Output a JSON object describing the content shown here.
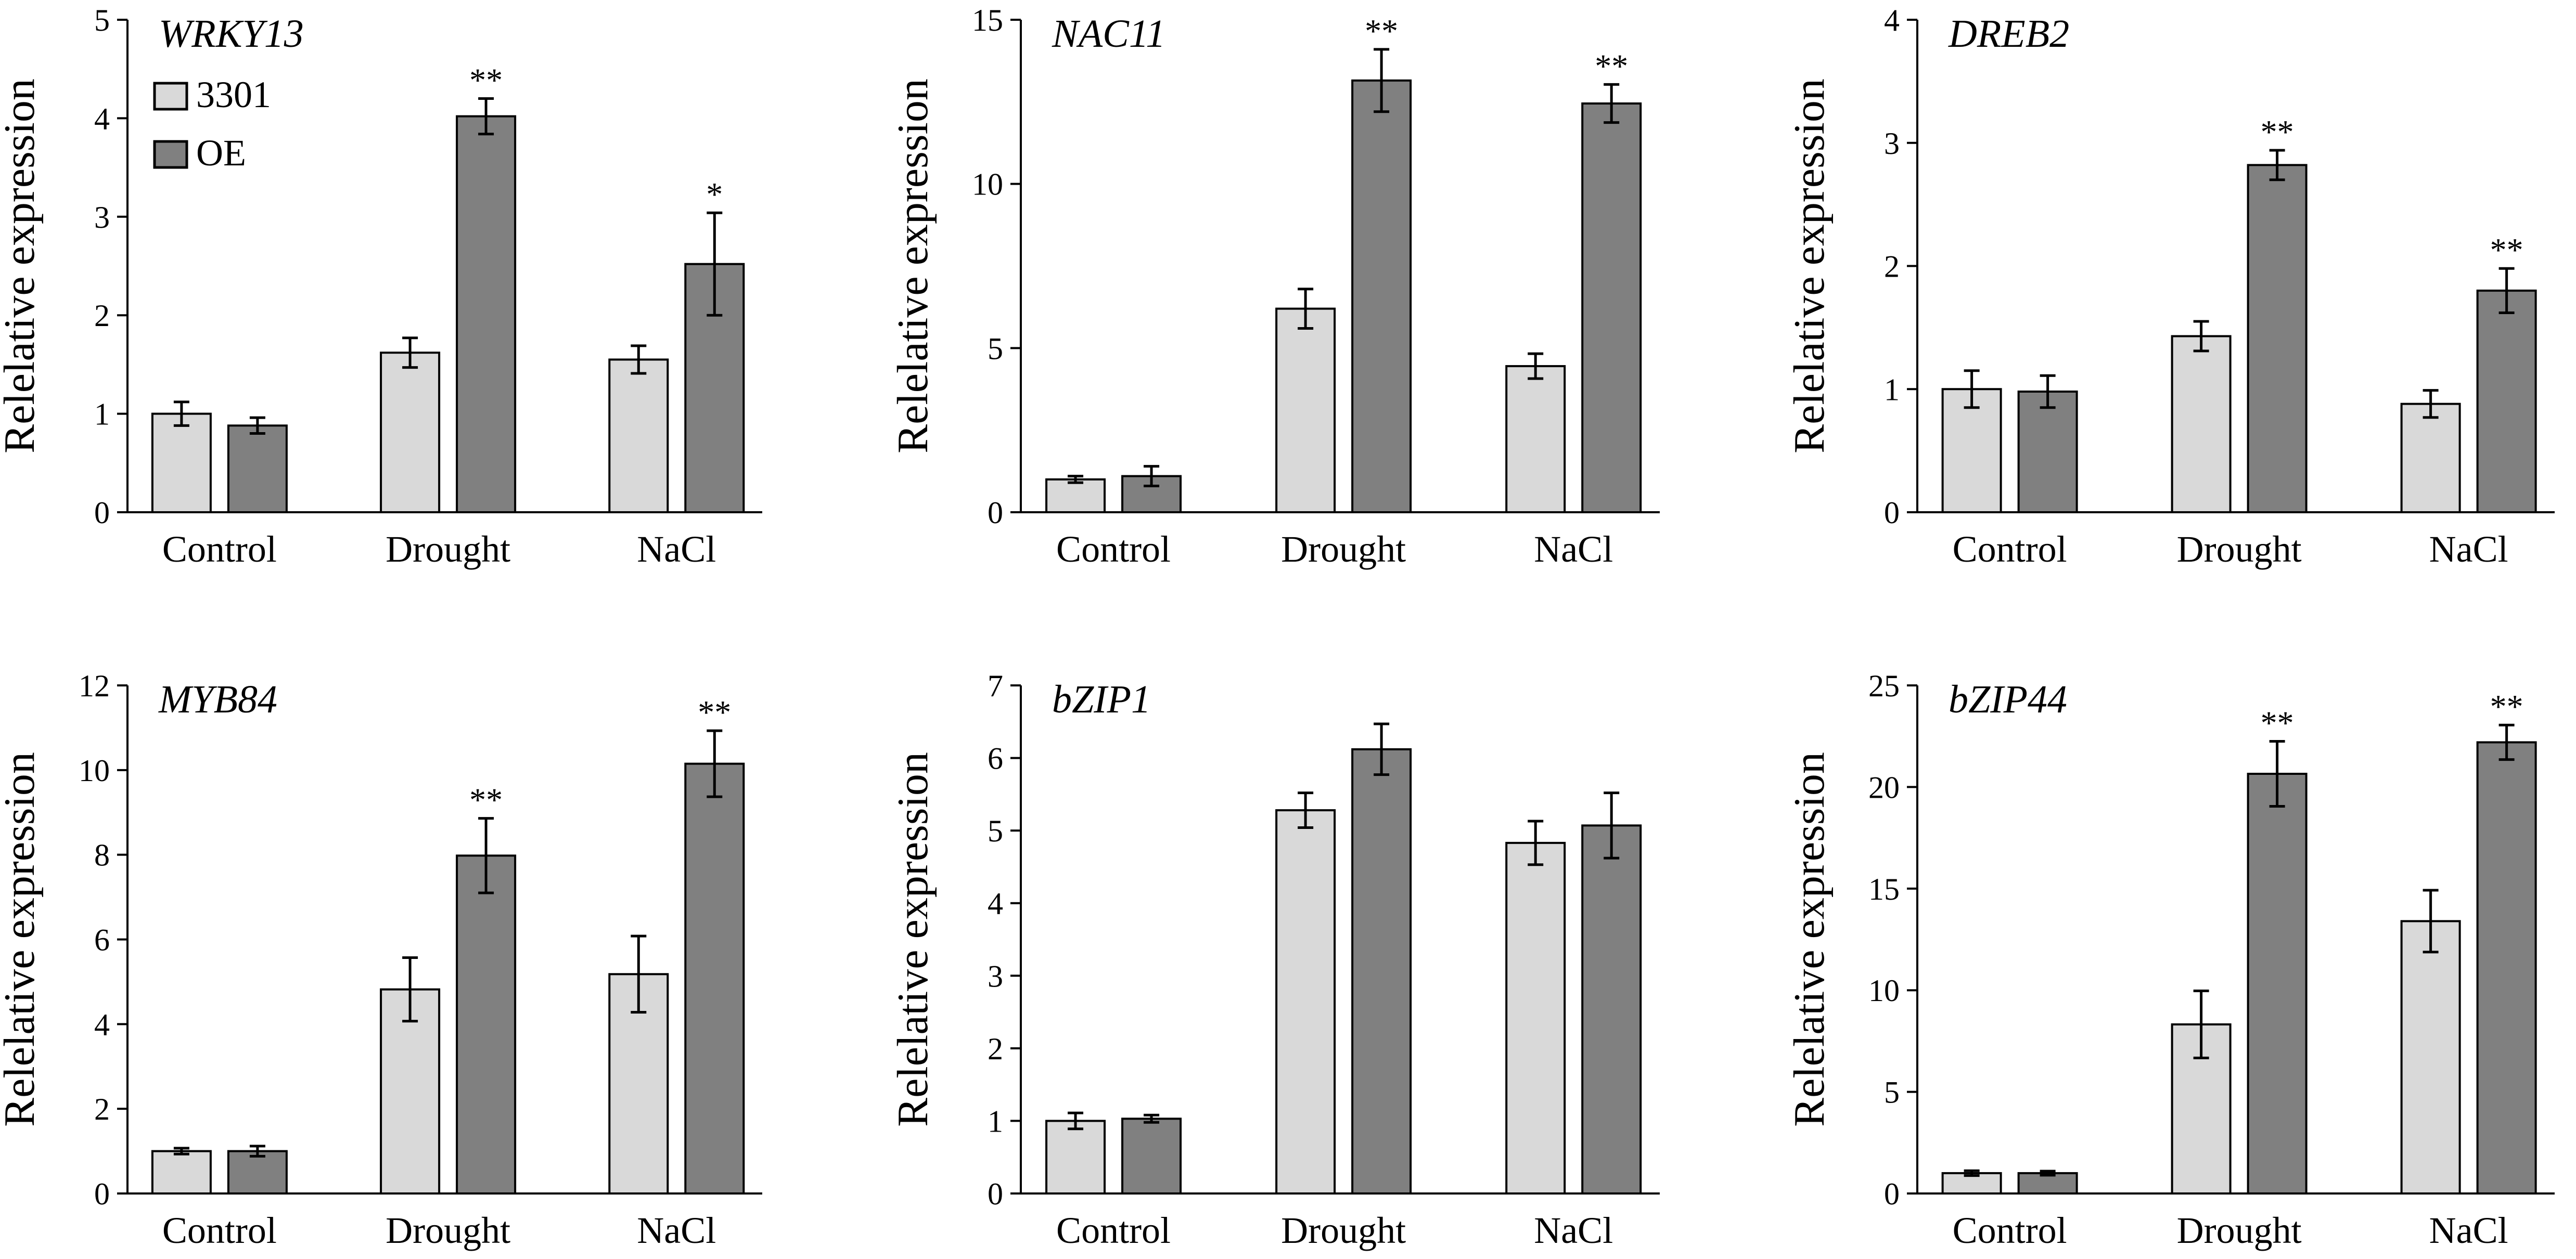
{
  "series_styles": [
    {
      "name": "3301",
      "color": "#d9d9d9"
    },
    {
      "name": "OE",
      "color": "#808080"
    }
  ],
  "legend": {
    "items": [
      "3301",
      "OE"
    ]
  },
  "chart_data": [
    {
      "type": "bar",
      "title": "WRKY13",
      "ylabel": "Relelative expression",
      "xlabel": "",
      "categories": [
        "Control",
        "Drought",
        "NaCl"
      ],
      "ylim": [
        0,
        5
      ],
      "yticks": [
        "0",
        "1",
        "2",
        "3",
        "4",
        "5"
      ],
      "series": [
        {
          "name": "3301",
          "values": [
            1.0,
            1.62,
            1.55
          ],
          "errors": [
            0.12,
            0.15,
            0.14
          ]
        },
        {
          "name": "OE",
          "values": [
            0.88,
            4.02,
            2.52
          ],
          "errors": [
            0.08,
            0.18,
            0.52
          ]
        }
      ],
      "annotations": [
        "",
        "**",
        "*"
      ]
    },
    {
      "type": "bar",
      "title": "NAC11",
      "ylabel": "Relelative expression",
      "xlabel": "",
      "categories": [
        "Control",
        "Drought",
        "NaCl"
      ],
      "ylim": [
        0,
        15
      ],
      "yticks": [
        "0",
        "5",
        "10",
        "15"
      ],
      "series": [
        {
          "name": "3301",
          "values": [
            1.0,
            6.2,
            4.45
          ],
          "errors": [
            0.1,
            0.6,
            0.38
          ]
        },
        {
          "name": "OE",
          "values": [
            1.1,
            13.15,
            12.45
          ],
          "errors": [
            0.3,
            0.95,
            0.58
          ]
        }
      ],
      "annotations": [
        "",
        "**",
        "**"
      ]
    },
    {
      "type": "bar",
      "title": "DREB2",
      "ylabel": "Relelative expression",
      "xlabel": "",
      "categories": [
        "Control",
        "Drought",
        "NaCl"
      ],
      "ylim": [
        0,
        4
      ],
      "yticks": [
        "0",
        "1",
        "2",
        "3",
        "4"
      ],
      "series": [
        {
          "name": "3301",
          "values": [
            1.0,
            1.43,
            0.88
          ],
          "errors": [
            0.15,
            0.12,
            0.11
          ]
        },
        {
          "name": "OE",
          "values": [
            0.98,
            2.82,
            1.8
          ],
          "errors": [
            0.13,
            0.12,
            0.18
          ]
        }
      ],
      "annotations": [
        "",
        "**",
        "**"
      ]
    },
    {
      "type": "bar",
      "title": "MYB84",
      "ylabel": "Relelative expression",
      "xlabel": "",
      "categories": [
        "Control",
        "Drought",
        "NaCl"
      ],
      "ylim": [
        0,
        12
      ],
      "yticks": [
        "0",
        "2",
        "4",
        "6",
        "8",
        "10",
        "12"
      ],
      "series": [
        {
          "name": "3301",
          "values": [
            1.0,
            4.82,
            5.18
          ],
          "errors": [
            0.07,
            0.75,
            0.9
          ]
        },
        {
          "name": "OE",
          "values": [
            1.0,
            7.98,
            10.15
          ],
          "errors": [
            0.12,
            0.88,
            0.78
          ]
        }
      ],
      "annotations": [
        "",
        "**",
        "**"
      ]
    },
    {
      "type": "bar",
      "title": "bZIP1",
      "ylabel": "Relelative expression",
      "xlabel": "",
      "categories": [
        "Control",
        "Drought",
        "NaCl"
      ],
      "ylim": [
        0,
        7
      ],
      "yticks": [
        "0",
        "1",
        "2",
        "3",
        "4",
        "5",
        "6",
        "7"
      ],
      "series": [
        {
          "name": "3301",
          "values": [
            1.0,
            5.28,
            4.83
          ],
          "errors": [
            0.11,
            0.24,
            0.3
          ]
        },
        {
          "name": "OE",
          "values": [
            1.03,
            6.12,
            5.07
          ],
          "errors": [
            0.05,
            0.35,
            0.45
          ]
        }
      ],
      "annotations": [
        "",
        "",
        ""
      ]
    },
    {
      "type": "bar",
      "title": "bZIP44",
      "ylabel": "Relelative expression",
      "xlabel": "",
      "categories": [
        "Control",
        "Drought",
        "NaCl"
      ],
      "ylim": [
        0,
        25
      ],
      "yticks": [
        "0",
        "5",
        "10",
        "15",
        "20",
        "25"
      ],
      "series": [
        {
          "name": "3301",
          "values": [
            1.0,
            8.32,
            13.4
          ],
          "errors": [
            0.12,
            1.65,
            1.52
          ]
        },
        {
          "name": "OE",
          "values": [
            1.0,
            20.65,
            22.2
          ],
          "errors": [
            0.1,
            1.6,
            0.85
          ]
        }
      ],
      "annotations": [
        "",
        "**",
        "**"
      ]
    }
  ]
}
